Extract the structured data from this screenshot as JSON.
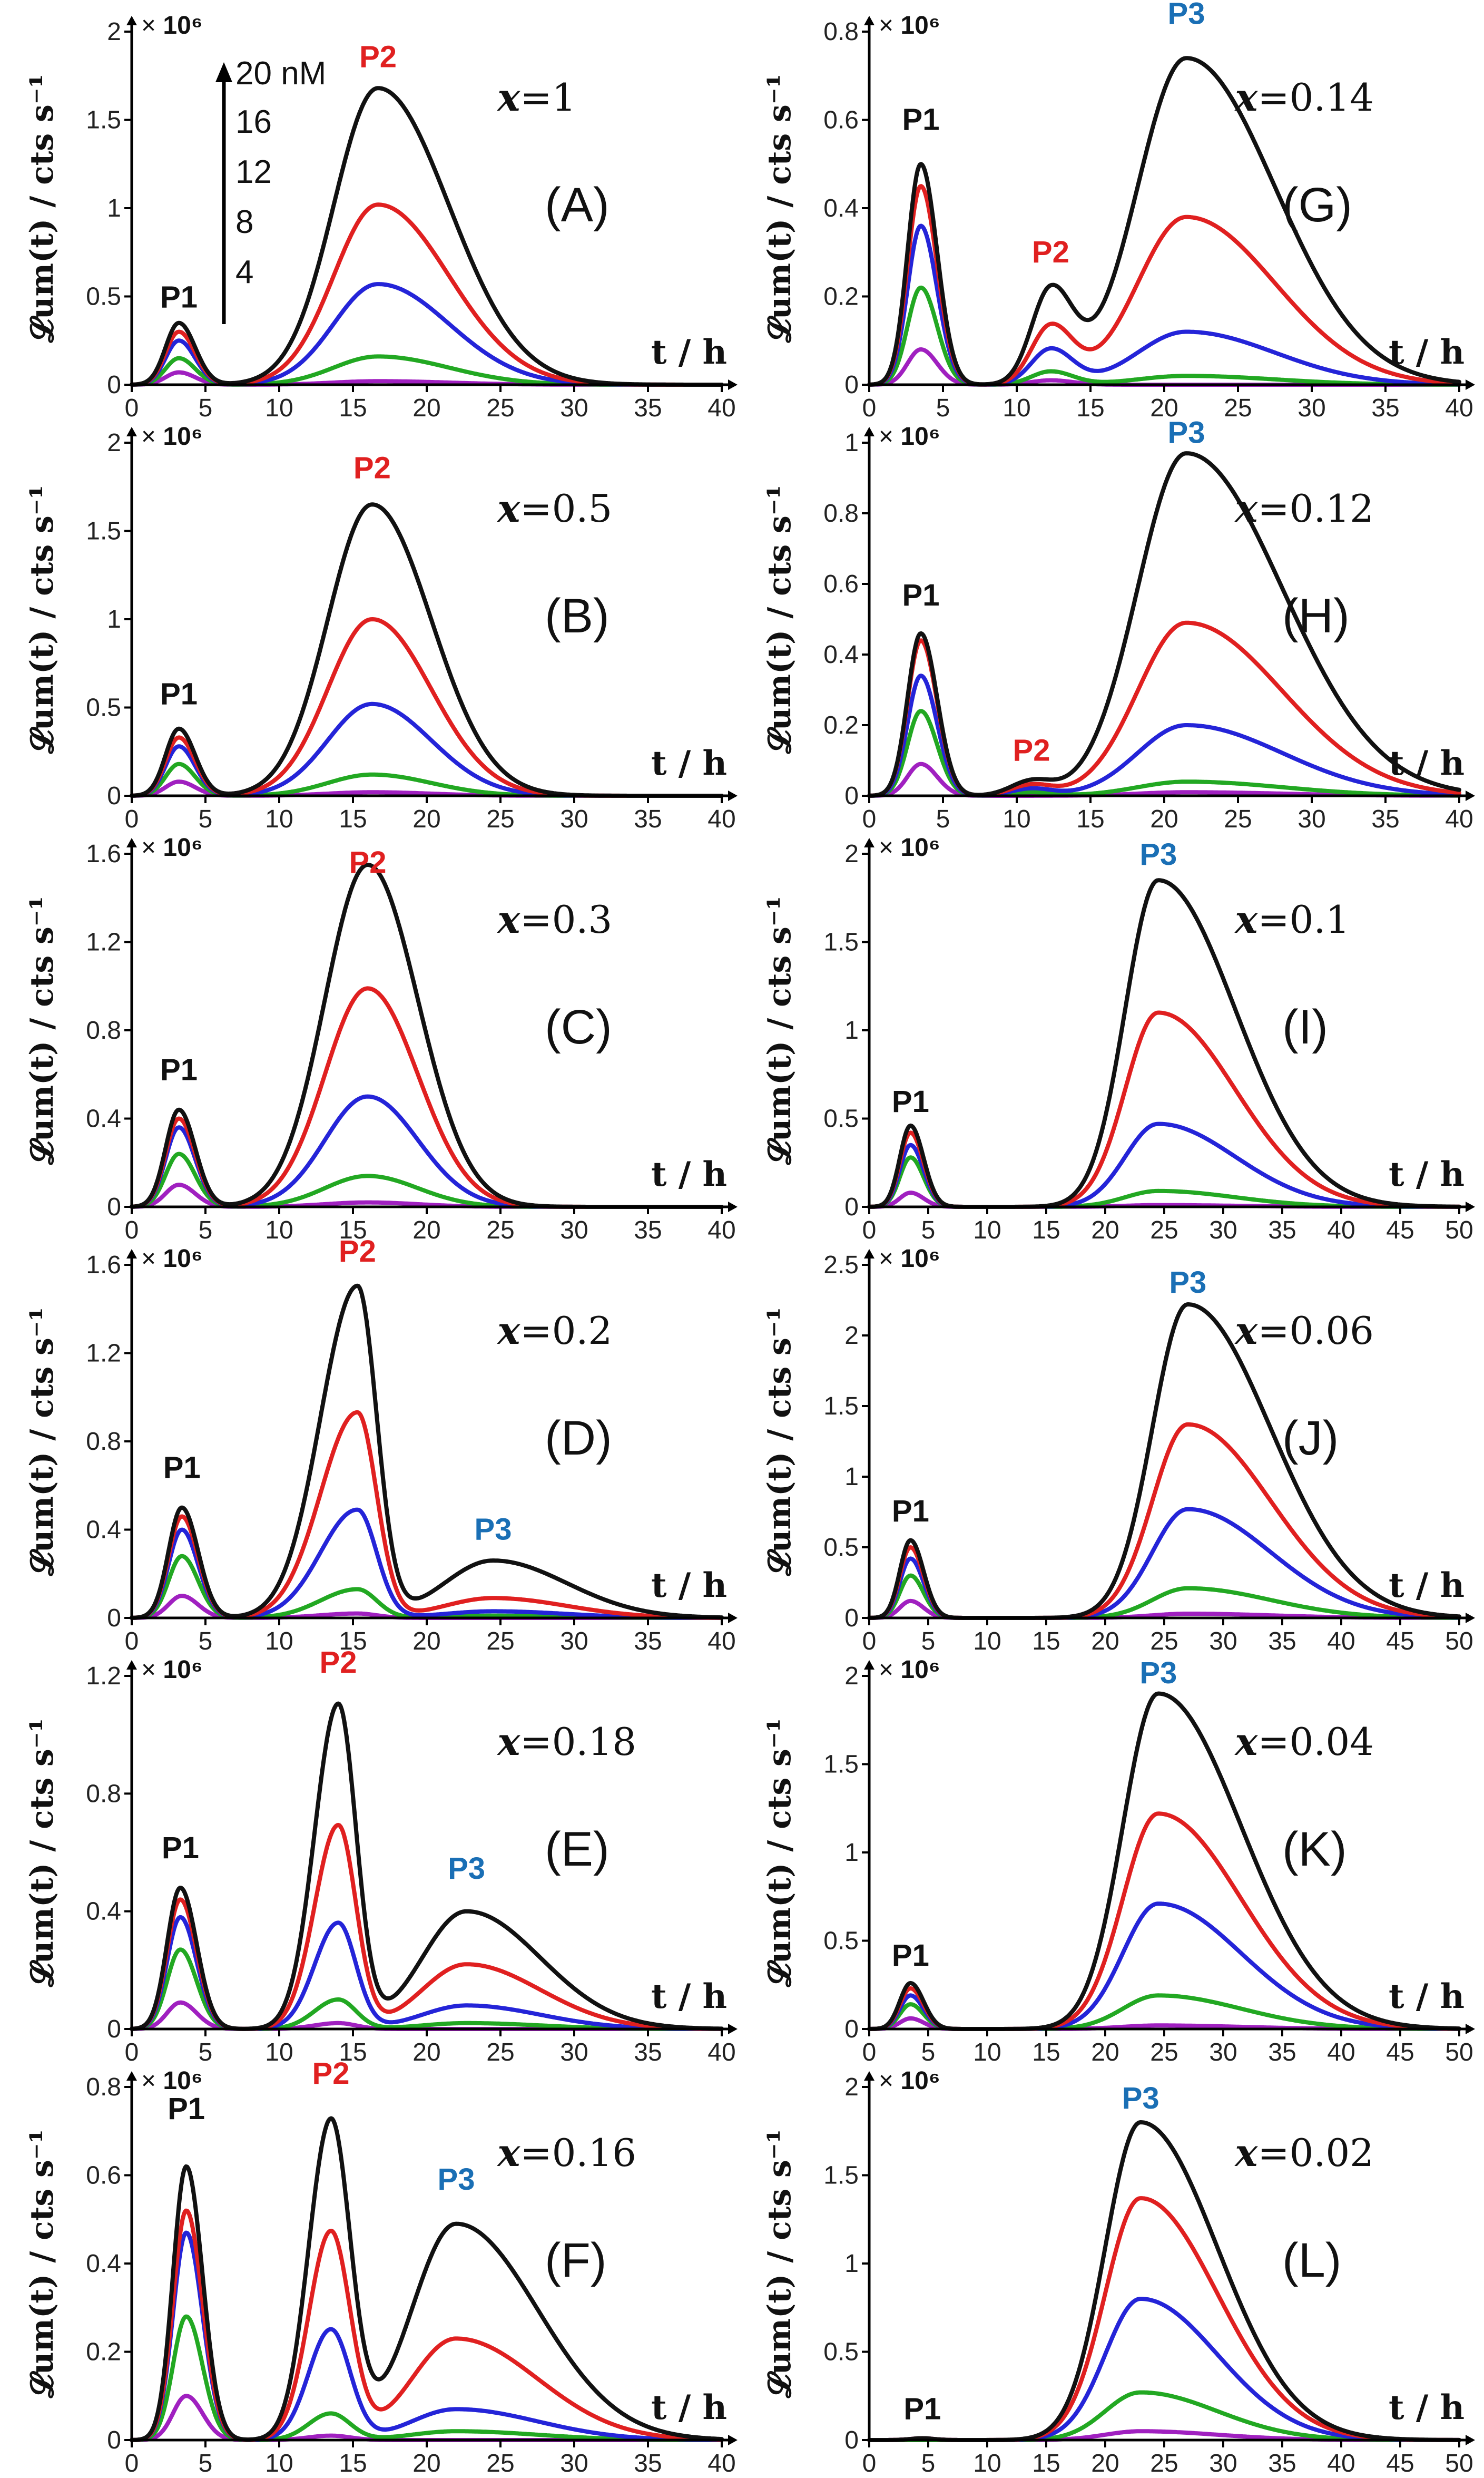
{
  "figure": {
    "ylabel": "𝓛um(t) / cts s⁻¹",
    "xlabel": "t / h",
    "multiplier_prefix": "×",
    "multiplier_value": "10⁶",
    "legend": {
      "arrow_label": "20 nM",
      "entries": [
        "16",
        "12",
        "8",
        "4"
      ]
    },
    "series_colors": {
      "20 nM": "#111111",
      "16 nM": "#e02020",
      "12 nM": "#2424d8",
      "8 nM": "#22a822",
      "4 nM": "#a020c0"
    },
    "peak_label_colors": {
      "P1": "#111111",
      "P2": "#e02020",
      "P3": "#1a6fb5"
    }
  },
  "chart_data": [
    {
      "type": "line",
      "panel": "(A)",
      "x_value_text": "=1",
      "xlim": [
        0,
        40
      ],
      "ylim": [
        0,
        2
      ],
      "xticks": [
        0,
        5,
        10,
        15,
        20,
        25,
        30,
        35,
        40
      ],
      "xtick_labels": [
        "0",
        "5",
        "10",
        "15",
        "20",
        "25",
        "30",
        "35",
        "40"
      ],
      "yticks": [
        0,
        0.5,
        1,
        1.5,
        2
      ],
      "ytick_labels": [
        "0",
        "0.5",
        "1",
        "1.5",
        "2"
      ],
      "peaks": [
        {
          "label": "P1",
          "t": 3.2,
          "widthL": 0.9,
          "widthR": 1.1,
          "amps": [
            0.35,
            0.3,
            0.25,
            0.15,
            0.07
          ],
          "label_y": 0.42
        },
        {
          "label": "P2",
          "t": 16.7,
          "widthL": 3.0,
          "widthR": 4.8,
          "amps": [
            1.68,
            1.02,
            0.57,
            0.16,
            0.02
          ],
          "label_y": 1.78
        }
      ],
      "show_legend": true
    },
    {
      "type": "line",
      "panel": "(B)",
      "x_value_text": "=0.5",
      "xlim": [
        0,
        40
      ],
      "ylim": [
        0,
        2
      ],
      "xticks": [
        0,
        5,
        10,
        15,
        20,
        25,
        30,
        35,
        40
      ],
      "xtick_labels": [
        "0",
        "5",
        "10",
        "15",
        "20",
        "25",
        "30",
        "35",
        "40"
      ],
      "yticks": [
        0,
        0.5,
        1,
        1.5,
        2
      ],
      "ytick_labels": [
        "0",
        "0.5",
        "1",
        "1.5",
        "2"
      ],
      "peaks": [
        {
          "label": "P1",
          "t": 3.2,
          "widthL": 0.9,
          "widthR": 1.1,
          "amps": [
            0.38,
            0.33,
            0.28,
            0.18,
            0.08
          ],
          "label_y": 0.5
        },
        {
          "label": "P2",
          "t": 16.3,
          "widthL": 3.0,
          "widthR": 4.0,
          "amps": [
            1.65,
            1.0,
            0.52,
            0.12,
            0.02
          ],
          "label_y": 1.78
        }
      ]
    },
    {
      "type": "line",
      "panel": "(C)",
      "x_value_text": "=0.3",
      "xlim": [
        0,
        40
      ],
      "ylim": [
        0,
        1.6
      ],
      "xticks": [
        0,
        5,
        10,
        15,
        20,
        25,
        30,
        35,
        40
      ],
      "xtick_labels": [
        "0",
        "5",
        "10",
        "15",
        "20",
        "25",
        "30",
        "35",
        "40"
      ],
      "yticks": [
        0,
        0.4,
        0.8,
        1.2,
        1.6
      ],
      "ytick_labels": [
        "0",
        "0.4",
        "0.8",
        "1.2",
        "1.6"
      ],
      "peaks": [
        {
          "label": "P1",
          "t": 3.2,
          "widthL": 0.9,
          "widthR": 1.1,
          "amps": [
            0.44,
            0.4,
            0.36,
            0.24,
            0.1
          ],
          "label_y": 0.56
        },
        {
          "label": "P2",
          "t": 16.0,
          "widthL": 2.9,
          "widthR": 3.4,
          "amps": [
            1.55,
            0.99,
            0.5,
            0.14,
            0.02
          ],
          "label_y": 1.5
        }
      ]
    },
    {
      "type": "line",
      "panel": "(D)",
      "x_value_text": "=0.2",
      "xlim": [
        0,
        40
      ],
      "ylim": [
        0,
        1.6
      ],
      "xticks": [
        0,
        5,
        10,
        15,
        20,
        25,
        30,
        35,
        40
      ],
      "xtick_labels": [
        "0",
        "5",
        "10",
        "15",
        "20",
        "25",
        "30",
        "35",
        "40"
      ],
      "yticks": [
        0,
        0.4,
        0.8,
        1.2,
        1.6
      ],
      "ytick_labels": [
        "0",
        "0.4",
        "0.8",
        "1.2",
        "1.6"
      ],
      "peaks": [
        {
          "label": "P1",
          "t": 3.4,
          "widthL": 0.9,
          "widthR": 1.1,
          "amps": [
            0.5,
            0.46,
            0.4,
            0.28,
            0.1
          ],
          "label_y": 0.62
        },
        {
          "label": "P2",
          "t": 15.3,
          "widthL": 2.5,
          "widthR": 1.3,
          "amps": [
            1.5,
            0.93,
            0.49,
            0.13,
            0.02
          ],
          "label_y": 1.6
        },
        {
          "label": "P3",
          "t": 24.5,
          "widthL": 3.3,
          "widthR": 5.0,
          "amps": [
            0.26,
            0.09,
            0.03,
            0.01,
            0.0
          ],
          "label_y": 0.34
        }
      ]
    },
    {
      "type": "line",
      "panel": "(E)",
      "x_value_text": "=0.18",
      "xlim": [
        0,
        40
      ],
      "ylim": [
        0,
        1.2
      ],
      "xticks": [
        0,
        5,
        10,
        15,
        20,
        25,
        30,
        35,
        40
      ],
      "xtick_labels": [
        "0",
        "5",
        "10",
        "15",
        "20",
        "25",
        "30",
        "35",
        "40"
      ],
      "yticks": [
        0,
        0.4,
        0.8,
        1.2
      ],
      "ytick_labels": [
        "0",
        "0.4",
        "0.8",
        "1.2"
      ],
      "peaks": [
        {
          "label": "P1",
          "t": 3.3,
          "widthL": 0.9,
          "widthR": 1.1,
          "amps": [
            0.48,
            0.44,
            0.38,
            0.27,
            0.09
          ],
          "label_y": 0.57
        },
        {
          "label": "P2",
          "t": 14.0,
          "widthL": 1.6,
          "widthR": 1.2,
          "amps": [
            1.1,
            0.69,
            0.36,
            0.1,
            0.02
          ],
          "label_y": 1.2
        },
        {
          "label": "P3",
          "t": 22.7,
          "widthL": 3.0,
          "widthR": 5.0,
          "amps": [
            0.4,
            0.22,
            0.08,
            0.02,
            0.0
          ],
          "label_y": 0.5
        }
      ]
    },
    {
      "type": "line",
      "panel": "(F)",
      "x_value_text": "=0.16",
      "xlim": [
        0,
        40
      ],
      "ylim": [
        0,
        0.8
      ],
      "xticks": [
        0,
        5,
        10,
        15,
        20,
        25,
        30,
        35,
        40
      ],
      "xtick_labels": [
        "0",
        "5",
        "10",
        "15",
        "20",
        "25",
        "30",
        "35",
        "40"
      ],
      "yticks": [
        0,
        0.2,
        0.4,
        0.6,
        0.8
      ],
      "ytick_labels": [
        "0",
        "0.2",
        "0.4",
        "0.6",
        "0.8"
      ],
      "peaks": [
        {
          "label": "P1",
          "t": 3.7,
          "widthL": 0.9,
          "widthR": 1.1,
          "amps": [
            0.62,
            0.52,
            0.47,
            0.28,
            0.1
          ],
          "label_y": 0.72
        },
        {
          "label": "P2",
          "t": 13.5,
          "widthL": 1.5,
          "widthR": 1.3,
          "amps": [
            0.72,
            0.47,
            0.25,
            0.06,
            0.01
          ],
          "label_y": 0.8
        },
        {
          "label": "P3",
          "t": 22.0,
          "widthL": 3.0,
          "widthR": 5.5,
          "amps": [
            0.49,
            0.23,
            0.07,
            0.02,
            0.0
          ],
          "label_y": 0.56
        }
      ]
    },
    {
      "type": "line",
      "panel": "(G)",
      "x_value_text": "=0.14",
      "xlim": [
        0,
        40
      ],
      "ylim": [
        0,
        0.8
      ],
      "xticks": [
        0,
        5,
        10,
        15,
        20,
        25,
        30,
        35,
        40
      ],
      "xtick_labels": [
        "0",
        "5",
        "10",
        "15",
        "20",
        "25",
        "30",
        "35",
        "40"
      ],
      "yticks": [
        0,
        0.2,
        0.4,
        0.6,
        0.8
      ],
      "ytick_labels": [
        "0",
        "0.2",
        "0.4",
        "0.6",
        "0.8"
      ],
      "peaks": [
        {
          "label": "P1",
          "t": 3.5,
          "widthL": 0.9,
          "widthR": 1.1,
          "amps": [
            0.5,
            0.45,
            0.36,
            0.22,
            0.08
          ],
          "label_y": 0.57
        },
        {
          "label": "P2",
          "t": 12.3,
          "widthL": 1.3,
          "widthR": 1.5,
          "amps": [
            0.21,
            0.13,
            0.08,
            0.03,
            0.01
          ],
          "label_y": 0.27
        },
        {
          "label": "P3",
          "t": 21.5,
          "widthL": 3.3,
          "widthR": 6.0,
          "amps": [
            0.74,
            0.38,
            0.12,
            0.02,
            0.0
          ],
          "label_y": 0.81
        }
      ]
    },
    {
      "type": "line",
      "panel": "(H)",
      "x_value_text": "=0.12",
      "xlim": [
        0,
        40
      ],
      "ylim": [
        0,
        1.0
      ],
      "xticks": [
        0,
        5,
        10,
        15,
        20,
        25,
        30,
        35,
        40
      ],
      "xtick_labels": [
        "0",
        "5",
        "10",
        "15",
        "20",
        "25",
        "30",
        "35",
        "40"
      ],
      "yticks": [
        0,
        0.2,
        0.4,
        0.6,
        0.8,
        1.0
      ],
      "ytick_labels": [
        "0",
        "0.2",
        "0.4",
        "0.6",
        "0.8",
        "1"
      ],
      "peaks": [
        {
          "label": "P1",
          "t": 3.5,
          "widthL": 0.9,
          "widthR": 1.1,
          "amps": [
            0.46,
            0.44,
            0.34,
            0.24,
            0.09
          ],
          "label_y": 0.53
        },
        {
          "label": "P2",
          "t": 11.0,
          "widthL": 1.4,
          "widthR": 1.4,
          "amps": [
            0.04,
            0.03,
            0.02,
            0.01,
            0.0
          ],
          "label_y": 0.09
        },
        {
          "label": "P3",
          "t": 21.5,
          "widthL": 3.3,
          "widthR": 6.5,
          "amps": [
            0.97,
            0.49,
            0.2,
            0.04,
            0.01
          ],
          "label_y": 0.99
        }
      ]
    },
    {
      "type": "line",
      "panel": "(I)",
      "x_value_text": "=0.1",
      "xlim": [
        0,
        50
      ],
      "ylim": [
        0,
        2
      ],
      "xticks": [
        0,
        5,
        10,
        15,
        20,
        25,
        30,
        35,
        40,
        45,
        50
      ],
      "xtick_labels": [
        "0",
        "5",
        "10",
        "15",
        "20",
        "25",
        "30",
        "35",
        "40",
        "45",
        "50"
      ],
      "yticks": [
        0,
        0.5,
        1,
        1.5,
        2
      ],
      "ytick_labels": [
        "0",
        "0.5",
        "1",
        "1.5",
        "2"
      ],
      "peaks": [
        {
          "label": "P1",
          "t": 3.5,
          "widthL": 0.9,
          "widthR": 1.1,
          "amps": [
            0.46,
            0.42,
            0.35,
            0.28,
            0.08
          ],
          "label_y": 0.52
        },
        {
          "label": "P3",
          "t": 24.5,
          "widthL": 2.8,
          "widthR": 6.5,
          "amps": [
            1.85,
            1.1,
            0.47,
            0.09,
            0.01
          ],
          "label_y": 1.92
        }
      ]
    },
    {
      "type": "line",
      "panel": "(J)",
      "x_value_text": "=0.06",
      "xlim": [
        0,
        50
      ],
      "ylim": [
        0,
        2.5
      ],
      "xticks": [
        0,
        5,
        10,
        15,
        20,
        25,
        30,
        35,
        40,
        45,
        50
      ],
      "xtick_labels": [
        "0",
        "5",
        "10",
        "15",
        "20",
        "25",
        "30",
        "35",
        "40",
        "45",
        "50"
      ],
      "yticks": [
        0,
        0.5,
        1,
        1.5,
        2,
        2.5
      ],
      "ytick_labels": [
        "0",
        "0.5",
        "1",
        "1.5",
        "2",
        "2.5"
      ],
      "peaks": [
        {
          "label": "P1",
          "t": 3.5,
          "widthL": 0.9,
          "widthR": 1.1,
          "amps": [
            0.55,
            0.5,
            0.42,
            0.3,
            0.12
          ],
          "label_y": 0.66
        },
        {
          "label": "P3",
          "t": 27.0,
          "widthL": 3.0,
          "widthR": 7.0,
          "amps": [
            2.22,
            1.37,
            0.77,
            0.21,
            0.03
          ],
          "label_y": 2.28
        }
      ]
    },
    {
      "type": "line",
      "panel": "(K)",
      "x_value_text": "=0.04",
      "xlim": [
        0,
        50
      ],
      "ylim": [
        0,
        2
      ],
      "xticks": [
        0,
        5,
        10,
        15,
        20,
        25,
        30,
        35,
        40,
        45,
        50
      ],
      "xtick_labels": [
        "0",
        "5",
        "10",
        "15",
        "20",
        "25",
        "30",
        "35",
        "40",
        "45",
        "50"
      ],
      "yticks": [
        0,
        0.5,
        1,
        1.5,
        2
      ],
      "ytick_labels": [
        "0",
        "0.5",
        "1",
        "1.5",
        "2"
      ],
      "peaks": [
        {
          "label": "P1",
          "t": 3.5,
          "widthL": 0.9,
          "widthR": 1.1,
          "amps": [
            0.26,
            0.23,
            0.19,
            0.14,
            0.06
          ],
          "label_y": 0.34
        },
        {
          "label": "P3",
          "t": 24.5,
          "widthL": 3.0,
          "widthR": 7.0,
          "amps": [
            1.9,
            1.22,
            0.71,
            0.19,
            0.02
          ],
          "label_y": 1.94
        }
      ]
    },
    {
      "type": "line",
      "panel": "(L)",
      "x_value_text": "=0.02",
      "xlim": [
        0,
        50
      ],
      "ylim": [
        0,
        2
      ],
      "xticks": [
        0,
        5,
        10,
        15,
        20,
        25,
        30,
        35,
        40,
        45,
        50
      ],
      "xtick_labels": [
        "0",
        "5",
        "10",
        "15",
        "20",
        "25",
        "30",
        "35",
        "40",
        "45",
        "50"
      ],
      "yticks": [
        0,
        0.5,
        1,
        1.5,
        2
      ],
      "ytick_labels": [
        "0",
        "0.5",
        "1",
        "1.5",
        "2"
      ],
      "peaks": [
        {
          "label": "P1",
          "t": 4.5,
          "widthL": 1.0,
          "widthR": 1.0,
          "amps": [
            0.01,
            0.01,
            0.01,
            0.0,
            0.0
          ],
          "label_y": 0.1
        },
        {
          "label": "P3",
          "t": 23.0,
          "widthL": 3.0,
          "widthR": 6.5,
          "amps": [
            1.8,
            1.37,
            0.8,
            0.27,
            0.05
          ],
          "label_y": 1.86
        }
      ]
    }
  ]
}
